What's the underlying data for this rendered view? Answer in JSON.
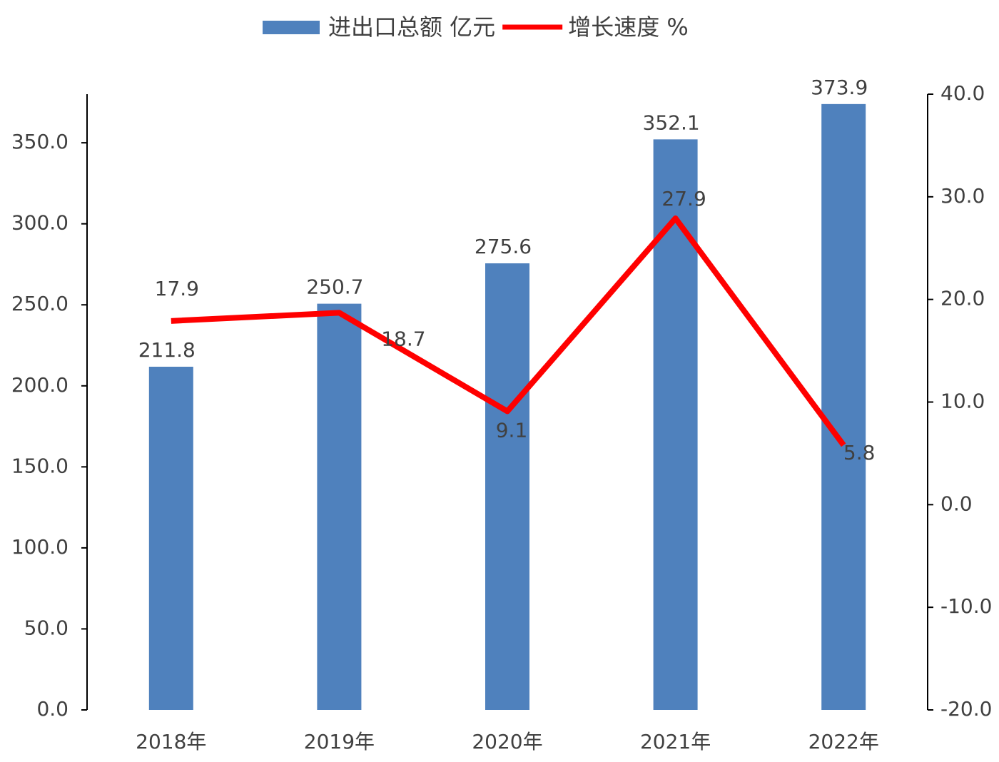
{
  "chart_data": {
    "type": "bar",
    "categories": [
      "2018年",
      "2019年",
      "2020年",
      "2021年",
      "2022年"
    ],
    "series": [
      {
        "name": "进出口总额 亿元",
        "type": "bar",
        "color": "#4f81bd",
        "values": [
          211.8,
          250.7,
          275.6,
          352.1,
          373.9
        ]
      },
      {
        "name": "增长速度 %",
        "type": "line",
        "axis": "y2",
        "color": "#ff0000",
        "values": [
          17.9,
          18.7,
          9.1,
          27.9,
          5.8
        ]
      }
    ],
    "ylim": [
      0,
      380
    ],
    "yticks": [
      {
        "value": 0,
        "label": "0.0"
      },
      {
        "value": 50,
        "label": "50.0"
      },
      {
        "value": 100,
        "label": "100.0"
      },
      {
        "value": 150,
        "label": "150.0"
      },
      {
        "value": 200,
        "label": "200.0"
      },
      {
        "value": 250,
        "label": "250.0"
      },
      {
        "value": 300,
        "label": "300.0"
      },
      {
        "value": 350,
        "label": "350.0"
      }
    ],
    "y2lim": [
      -20,
      40
    ],
    "y2ticks": [
      {
        "value": -20,
        "label": "-20.0"
      },
      {
        "value": -10,
        "label": "-10.0"
      },
      {
        "value": 0,
        "label": "0.0"
      },
      {
        "value": 10,
        "label": "10.0"
      },
      {
        "value": 20,
        "label": "20.0"
      },
      {
        "value": 30,
        "label": "30.0"
      },
      {
        "value": 40,
        "label": "40.0"
      }
    ],
    "legend": "top",
    "grid": false
  }
}
